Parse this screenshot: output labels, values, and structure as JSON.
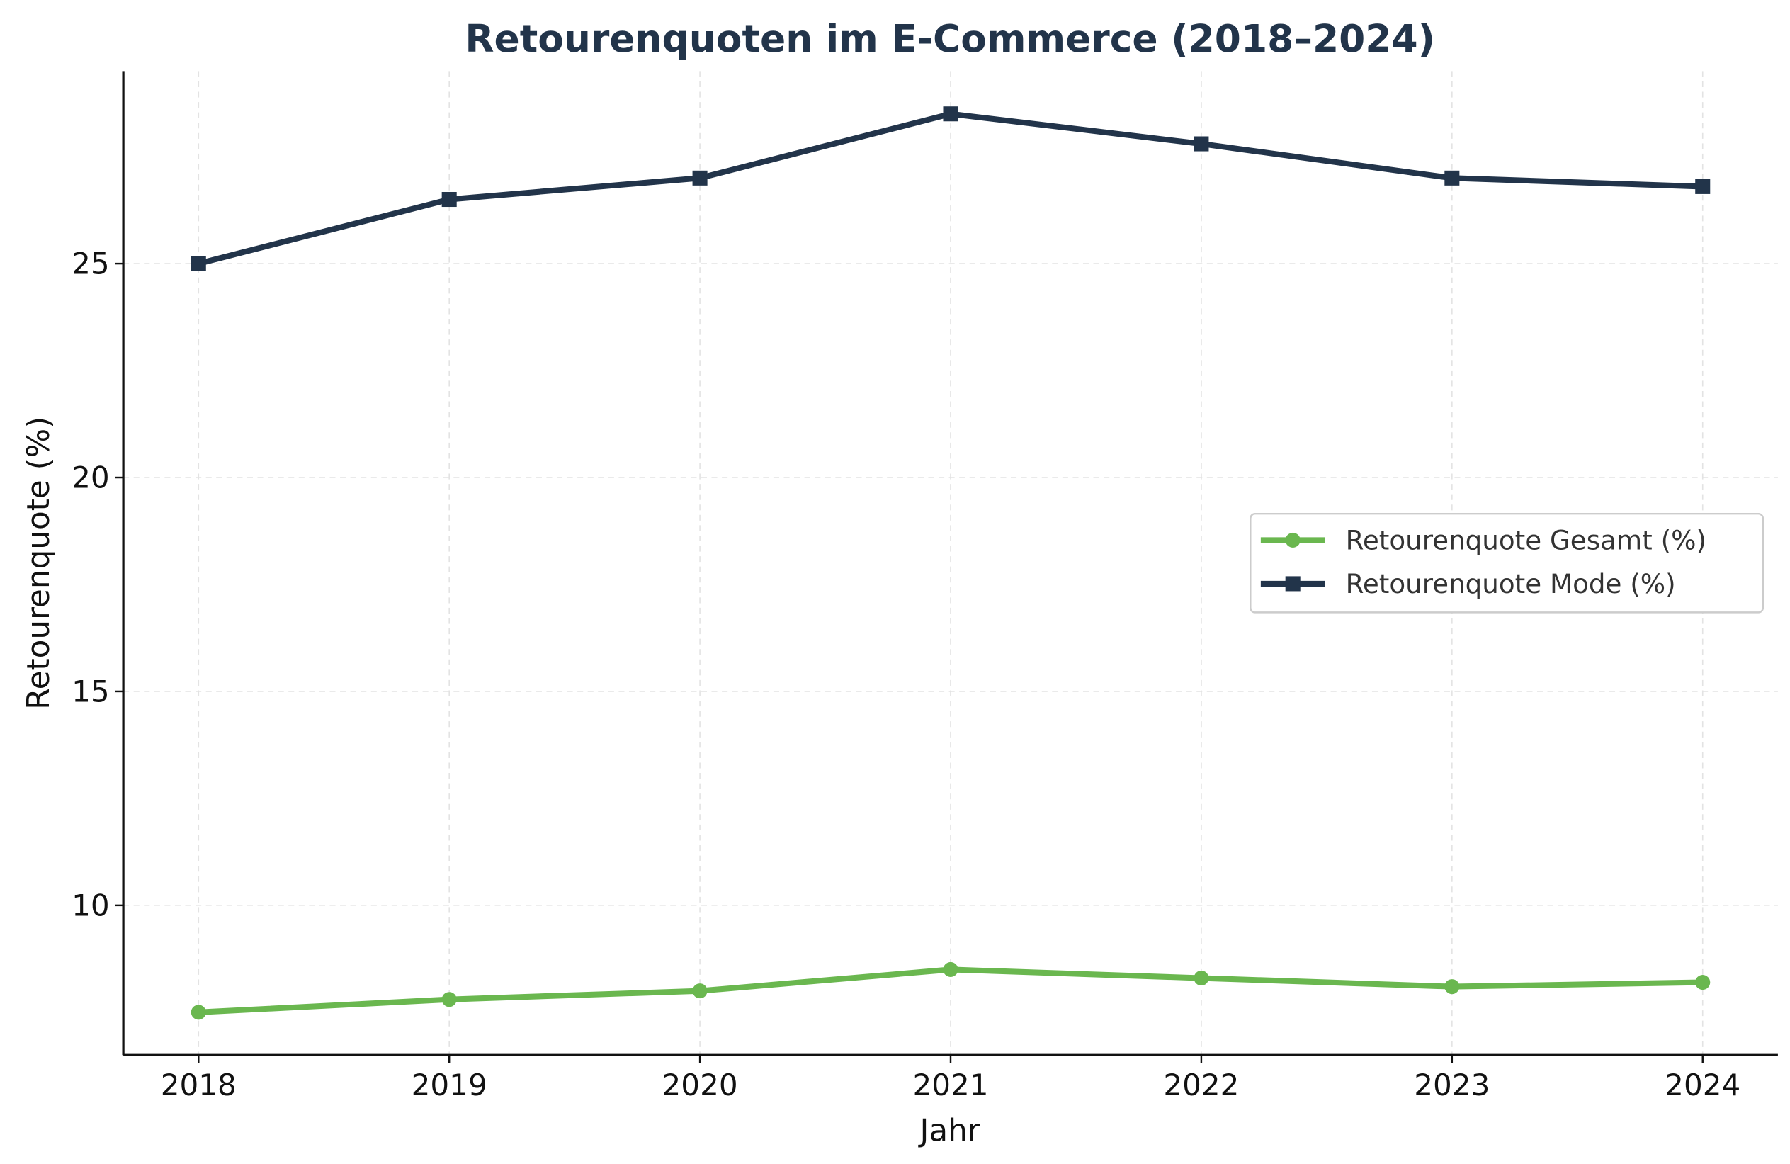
{
  "chart_data": {
    "type": "line",
    "title": "Retourenquoten im E-Commerce (2018–2024)",
    "xlabel": "Jahr",
    "ylabel": "Retourenquote (%)",
    "x": [
      2018,
      2019,
      2020,
      2021,
      2022,
      2023,
      2024
    ],
    "x_tick_labels": [
      "2018",
      "2019",
      "2020",
      "2021",
      "2022",
      "2023",
      "2024"
    ],
    "y_ticks": [
      10,
      15,
      20,
      25
    ],
    "y_tick_labels": [
      "10",
      "15",
      "20",
      "25"
    ],
    "xlim": [
      2017.7,
      2024.3
    ],
    "ylim": [
      6.5,
      29.5
    ],
    "grid": true,
    "legend_position": "center-right",
    "series": [
      {
        "name": "Retourenquote Gesamt (%)",
        "values": [
          7.5,
          7.8,
          8.0,
          8.5,
          8.3,
          8.1,
          8.2
        ],
        "color": "#6ab74f",
        "marker": "circle"
      },
      {
        "name": "Retourenquote Mode (%)",
        "values": [
          25.0,
          26.5,
          27.0,
          28.5,
          27.8,
          27.0,
          26.8
        ],
        "color": "#22344a",
        "marker": "square"
      }
    ]
  }
}
